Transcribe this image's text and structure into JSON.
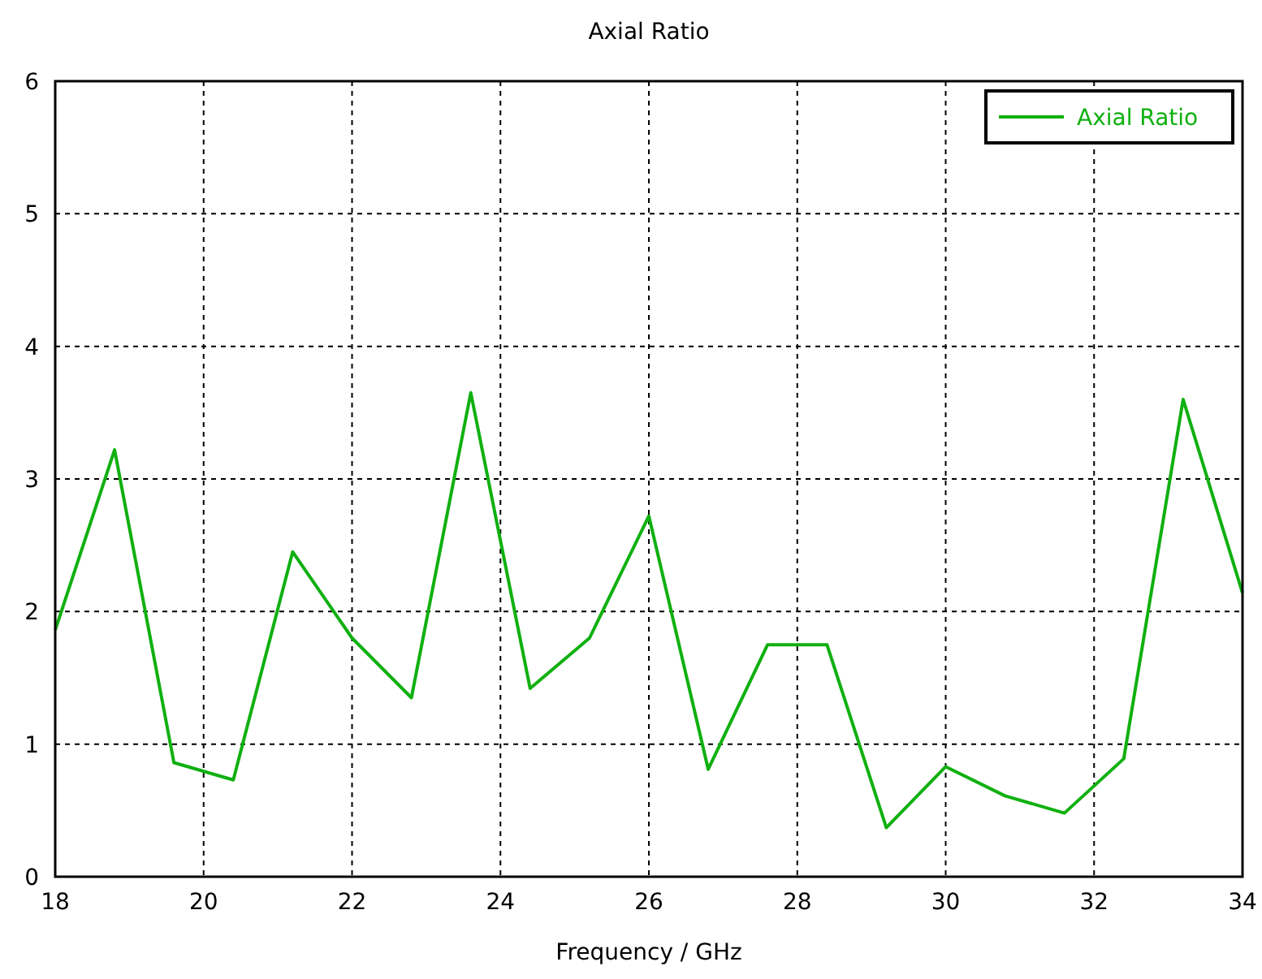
{
  "chart_data": {
    "type": "line",
    "title": "Axial Ratio",
    "xlabel": "Frequency / GHz",
    "x": [
      18,
      18.8,
      19.6,
      20.4,
      21.2,
      22,
      22.8,
      23.6,
      24.4,
      25.2,
      26,
      26.8,
      27.6,
      28.4,
      29.2,
      30,
      30.8,
      31.6,
      32.4,
      33.2,
      34
    ],
    "series": [
      {
        "name": "Axial Ratio",
        "color": "#10b010",
        "values": [
          1.86,
          3.22,
          0.86,
          0.73,
          2.45,
          1.8,
          1.35,
          3.65,
          1.42,
          1.8,
          2.72,
          0.81,
          1.75,
          1.75,
          0.37,
          0.83,
          0.61,
          0.48,
          0.89,
          3.6,
          2.14
        ]
      }
    ],
    "xlim": [
      18,
      34
    ],
    "xticks": [
      18,
      20,
      22,
      24,
      26,
      28,
      30,
      32,
      34
    ],
    "ylim": [
      0,
      6
    ],
    "yticks": [
      0,
      1,
      2,
      3,
      4,
      5,
      6
    ],
    "grid": true,
    "legend": "top right",
    "marker": "none",
    "line_style": "solid"
  }
}
